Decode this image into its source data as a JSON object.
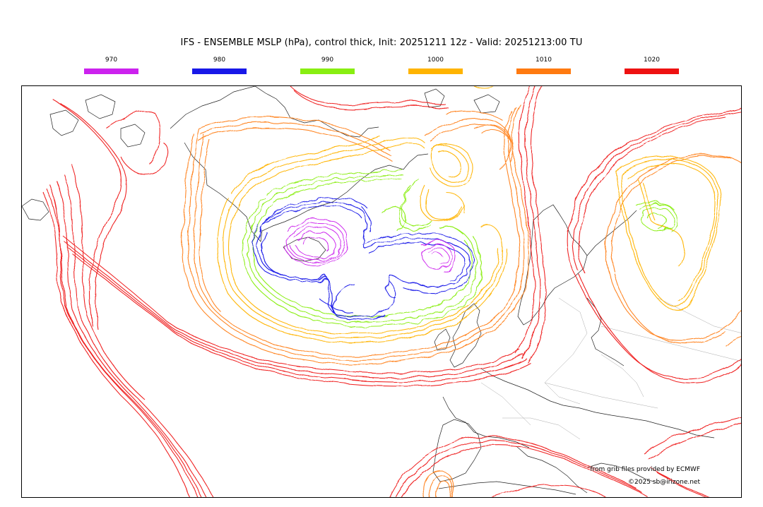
{
  "title": "IFS - ENSEMBLE MSLP (hPa), control thick, Init: 20251211 12z - Valid: 20251213:00 TU",
  "legend": [
    {
      "label": "970",
      "color": "#cc22ee"
    },
    {
      "label": "980",
      "color": "#1818e8"
    },
    {
      "label": "990",
      "color": "#88ee11"
    },
    {
      "label": "1000",
      "color": "#ffb400"
    },
    {
      "label": "1010",
      "color": "#ff7a10"
    },
    {
      "label": "1020",
      "color": "#ee1111"
    }
  ],
  "credits": {
    "provider": "from grib files provided by ECMWF",
    "copyright": "©2025 sb@irizone.net"
  }
}
